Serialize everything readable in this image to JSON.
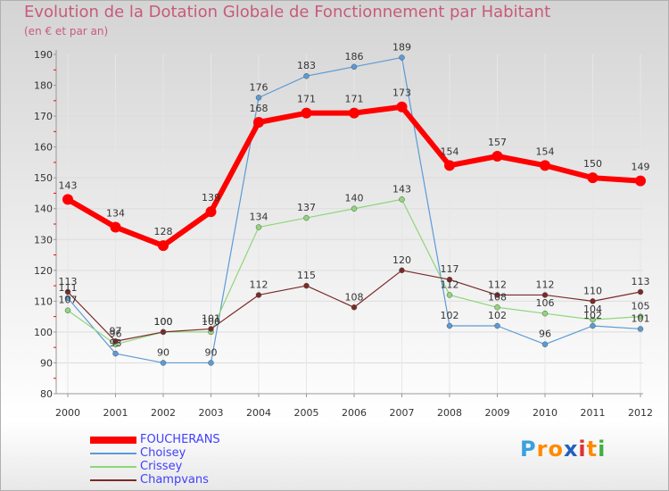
{
  "title": "Evolution de la Dotation Globale de Fonctionnement par Habitant",
  "subtitle": "(en € et par an)",
  "logo": {
    "text": "Proxiti",
    "letters": [
      "P",
      "r",
      "o",
      "x",
      "i",
      "t",
      "i"
    ],
    "colors": [
      "#3aa0e0",
      "#ff8a00",
      "#ff8a00",
      "#2060c0",
      "#e03030",
      "#ff8a00",
      "#40b040"
    ]
  },
  "chart_data": {
    "type": "line",
    "title": "Evolution de la Dotation Globale de Fonctionnement par Habitant",
    "subtitle": "(en € et par an)",
    "x": [
      "2000",
      "2001",
      "2002",
      "2003",
      "2004",
      "2005",
      "2006",
      "2007",
      "2008",
      "2009",
      "2010",
      "2011",
      "2012"
    ],
    "ylim": [
      80,
      190
    ],
    "yticks": [
      "80",
      "90",
      "100",
      "110",
      "120",
      "130",
      "140",
      "150",
      "160",
      "170",
      "180",
      "190"
    ],
    "series": [
      {
        "name": "FOUCHERANS",
        "color": "#ff0000",
        "width": 6,
        "marker": 6,
        "values": [
          143,
          134,
          128,
          139,
          168,
          171,
          171,
          173,
          154,
          157,
          154,
          150,
          149
        ],
        "labels": [
          "143",
          "134",
          "128",
          "139",
          "168",
          "171",
          "171",
          "173",
          "154",
          "157",
          "154",
          "150",
          "149"
        ]
      },
      {
        "name": "Choisey",
        "color": "#5b9bd5",
        "width": 1.2,
        "marker": 3,
        "values": [
          111,
          93,
          90,
          90,
          176,
          183,
          186,
          189,
          102,
          102,
          96,
          102,
          101
        ],
        "labels": [
          "111",
          "93",
          "90",
          "90",
          "176",
          "183",
          "186",
          "189",
          "102",
          "102",
          "96",
          "102",
          "101"
        ]
      },
      {
        "name": "Crissey",
        "color": "#8fd67a",
        "width": 1.2,
        "marker": 3,
        "values": [
          107,
          96,
          100,
          100,
          134,
          137,
          140,
          143,
          112,
          108,
          106,
          104,
          105
        ],
        "labels": [
          "107",
          "96",
          "100",
          "100",
          "134",
          "137",
          "140",
          "143",
          "112",
          "108",
          "106",
          "104",
          "105"
        ]
      },
      {
        "name": "Champvans",
        "color": "#7a2a2a",
        "width": 1.2,
        "marker": 3,
        "values": [
          113,
          97,
          100,
          101,
          112,
          115,
          108,
          120,
          117,
          112,
          112,
          110,
          113
        ],
        "labels": [
          "113",
          "97",
          "100",
          "101",
          "112",
          "115",
          "108",
          "120",
          "117",
          "112",
          "112",
          "110",
          "113"
        ]
      }
    ]
  }
}
